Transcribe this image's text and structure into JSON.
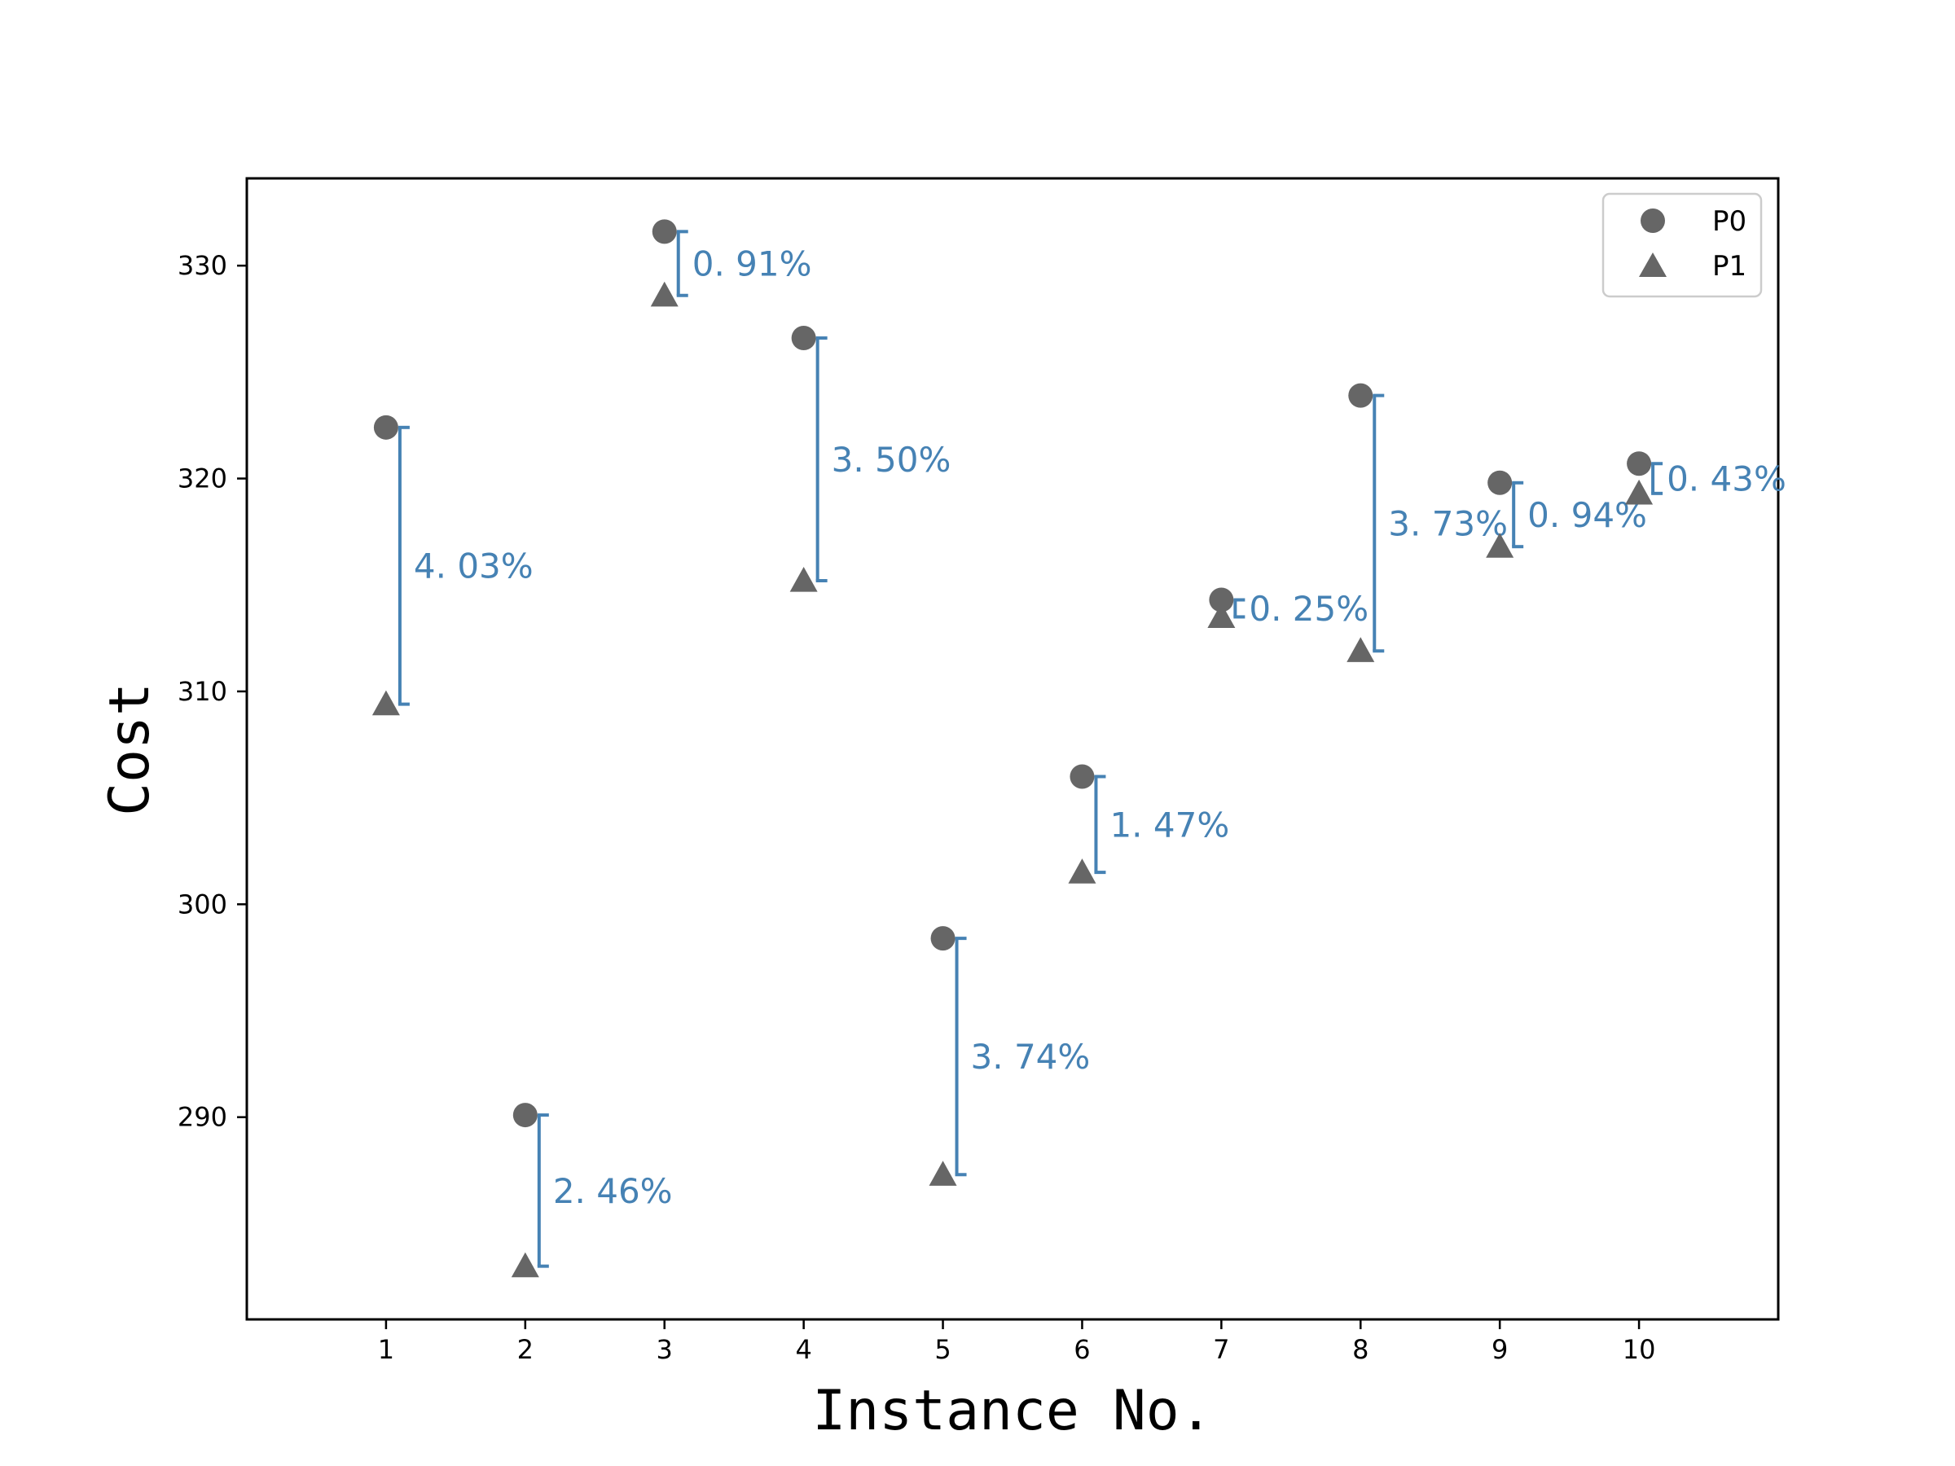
{
  "chart_data": {
    "type": "scatter",
    "xlabel": "Instance No.",
    "ylabel": "Cost",
    "x": [
      1,
      2,
      3,
      4,
      5,
      6,
      7,
      8,
      9,
      10
    ],
    "xlim": [
      0,
      11
    ],
    "ylim": [
      280.5,
      334.1
    ],
    "xticks": [
      1,
      2,
      3,
      4,
      5,
      6,
      7,
      8,
      9,
      10
    ],
    "yticks": [
      290,
      300,
      310,
      320,
      330
    ],
    "grid": false,
    "legend_position": "top-right",
    "series": [
      {
        "name": "P0",
        "marker": "circle",
        "values": [
          322.4,
          290.1,
          331.6,
          326.6,
          298.4,
          306.0,
          314.3,
          323.9,
          319.8,
          320.7
        ]
      },
      {
        "name": "P1",
        "marker": "triangle",
        "values": [
          309.4,
          283.0,
          328.6,
          315.2,
          287.3,
          301.5,
          313.5,
          311.9,
          316.8,
          319.3
        ]
      }
    ],
    "gap_labels": [
      "4. 03%",
      "2. 46%",
      "0. 91%",
      "3. 50%",
      "3. 74%",
      "1. 47%",
      "0. 25%",
      "3. 73%",
      "0. 94%",
      "0. 43%"
    ],
    "colors": {
      "marker": "#666666",
      "gap": "#4682B4",
      "axis": "#000000"
    }
  }
}
